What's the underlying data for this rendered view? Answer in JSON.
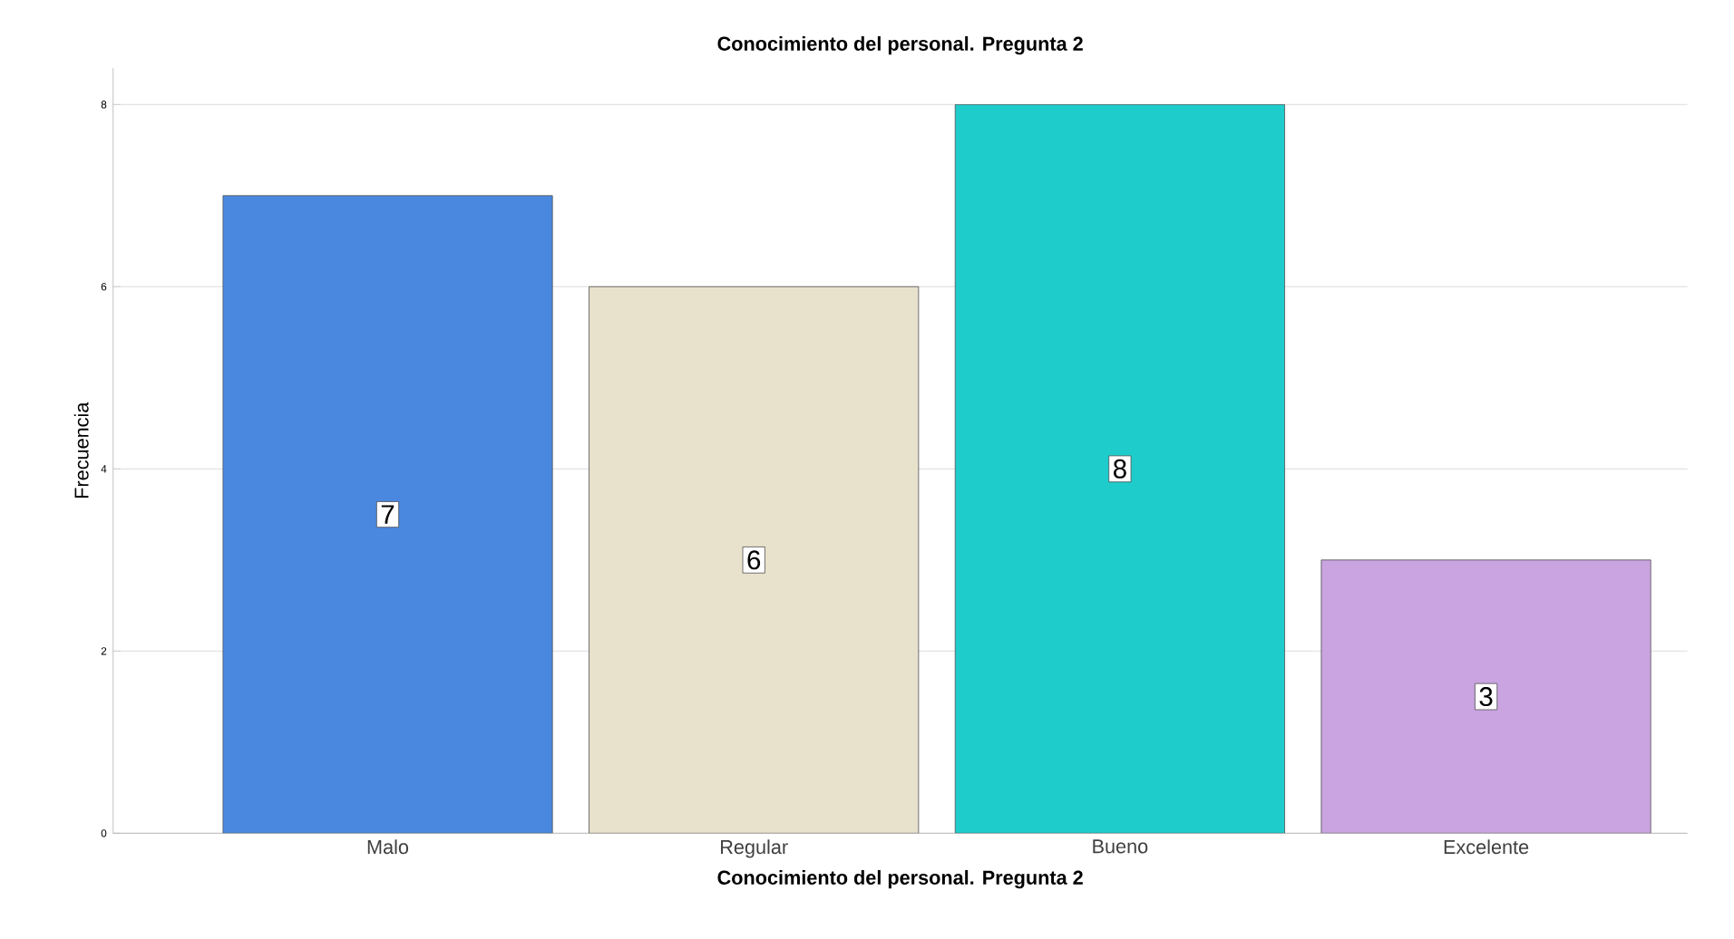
{
  "chart_data": {
    "type": "bar",
    "title": "Conocimiento del personal. Pregunta 2",
    "xlabel": "Conocimiento del personal. Pregunta 2",
    "ylabel": "Frecuencia",
    "categories": [
      "Malo",
      "Regular",
      "Bueno",
      "Excelente"
    ],
    "values": [
      7,
      6,
      8,
      3
    ],
    "colors": [
      "#4a88e0",
      "#e8e1cc",
      "#1fcccc",
      "#c9a4e0"
    ],
    "ylim": [
      0,
      8.4
    ],
    "yticks": [
      0,
      2,
      4,
      6,
      8
    ],
    "grid": "y",
    "data_labels": true
  }
}
